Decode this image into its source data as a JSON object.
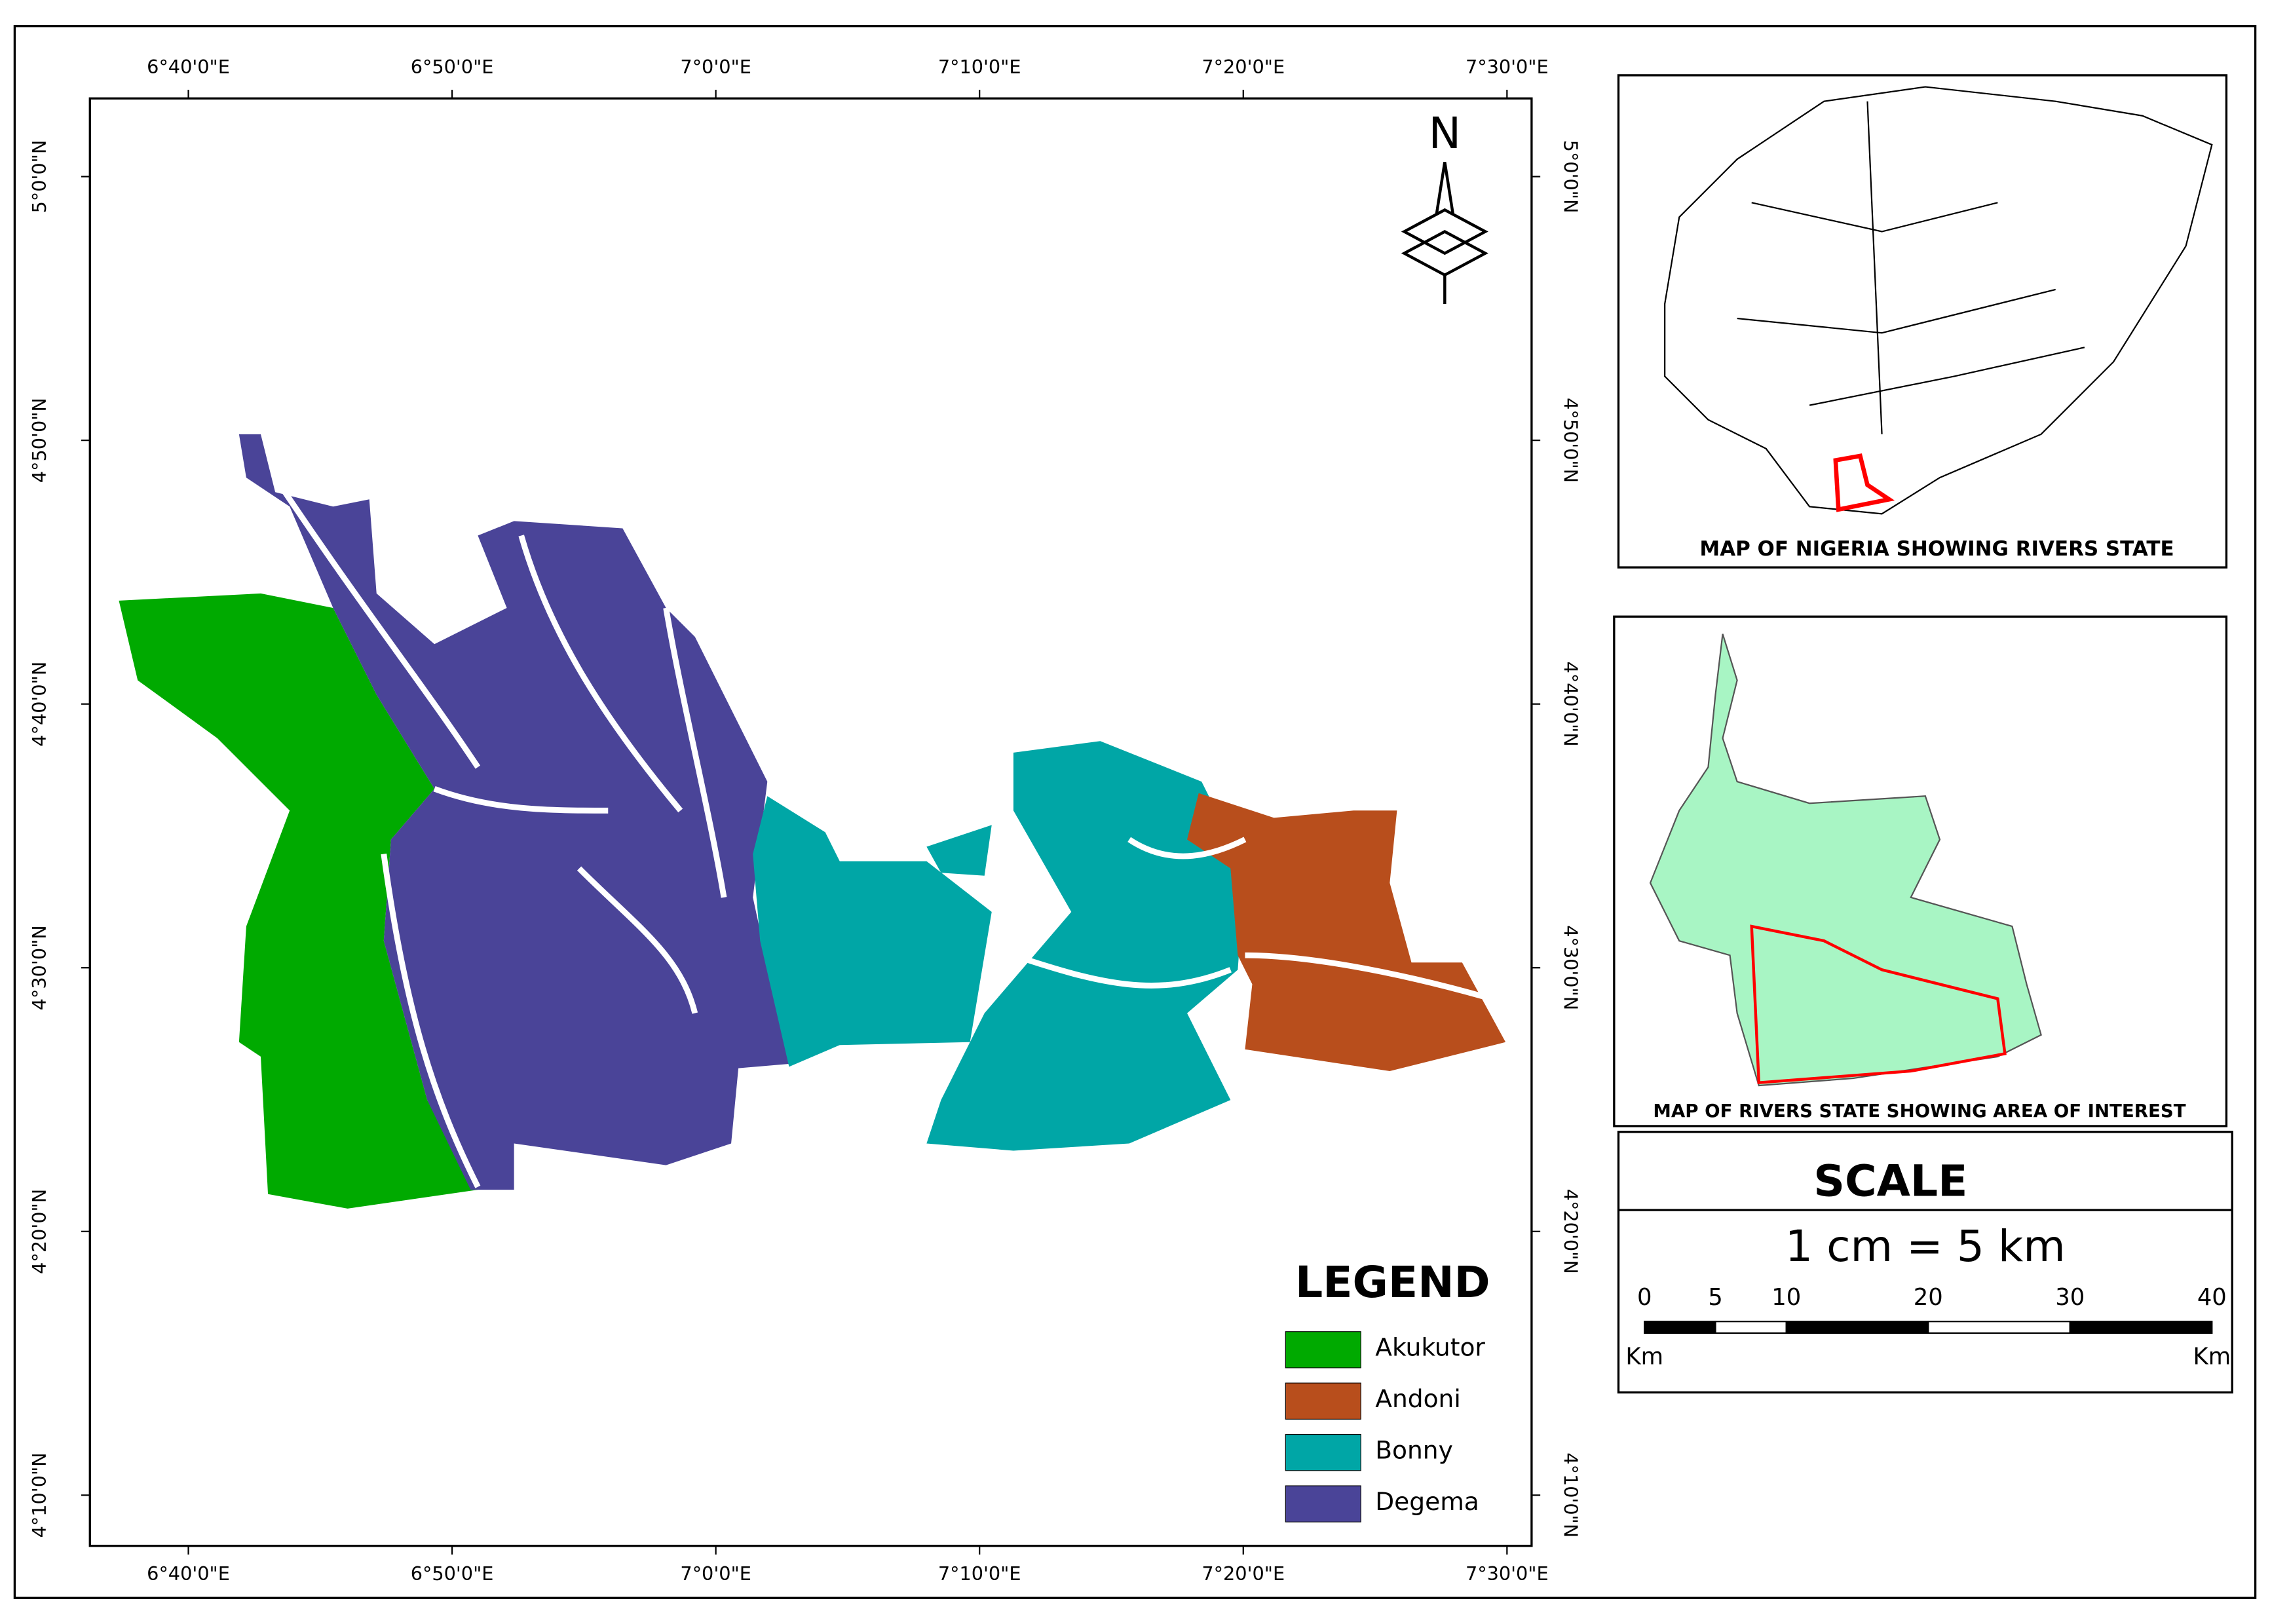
{
  "map": {
    "xticks": [
      "6°40'0\"E",
      "6°50'0\"E",
      "7°0'0\"E",
      "7°10'0\"E",
      "7°20'0\"E",
      "7°30'0\"E"
    ],
    "yticks": [
      "5°0'0\"N",
      "4°50'0\"N",
      "4°40'0\"N",
      "4°30'0\"N",
      "4°20'0\"N",
      "4°10'0\"N"
    ],
    "north": "N"
  },
  "legend": {
    "title": "LEGEND",
    "items": [
      {
        "name": "Akukutor",
        "color": "#00aa00"
      },
      {
        "name": "Andoni",
        "color": "#b84e1c"
      },
      {
        "name": "Bonny",
        "color": "#00a6a6"
      },
      {
        "name": "Degema",
        "color": "#4a4498"
      }
    ]
  },
  "insets": [
    {
      "title": "MAP OF NIGERIA SHOWING RIVERS STATE"
    },
    {
      "title": "MAP OF RIVERS STATE SHOWING AREA OF INTEREST"
    }
  ],
  "scale": {
    "title": "SCALE",
    "ratio": "1 cm = 5 km",
    "ticks": [
      0,
      5,
      10,
      20,
      30,
      40
    ],
    "unit": "Km"
  }
}
